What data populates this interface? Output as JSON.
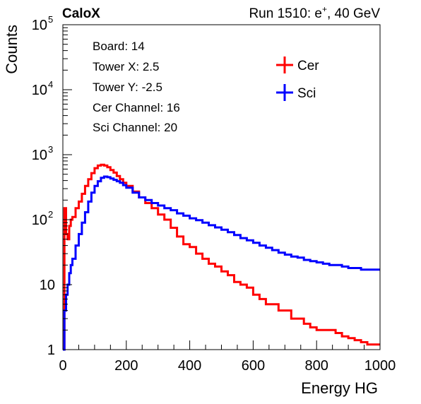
{
  "header": {
    "experiment": "CaloX",
    "run_label": "Run 1510: e",
    "run_sup": "+",
    "run_energy": ", 40 GeV"
  },
  "info": {
    "board": "Board: 14",
    "tower_x": "Tower X: 2.5",
    "tower_y": "Tower Y: -2.5",
    "cer_channel": "Cer Channel: 16",
    "sci_channel": "Sci Channel: 20"
  },
  "colors": {
    "cer": "#ff0000",
    "sci": "#0000ff",
    "axis": "#000000"
  },
  "chart_data": {
    "type": "line",
    "title": "",
    "xlabel": "Energy HG",
    "ylabel": "Counts",
    "xlim": [
      0,
      1000
    ],
    "ylim": [
      1,
      100000
    ],
    "yscale": "log",
    "grid": false,
    "legend_position": "top-right",
    "x_ticks": [
      0,
      200,
      400,
      600,
      800,
      1000
    ],
    "x_tick_labels": [
      "0",
      "200",
      "400",
      "600",
      "800",
      "1000"
    ],
    "y_ticks": [
      1,
      10,
      100,
      1000,
      10000,
      100000
    ],
    "y_tick_labels": [
      {
        "base": "1",
        "exp": ""
      },
      {
        "base": "10",
        "exp": ""
      },
      {
        "base": "10",
        "exp": "2"
      },
      {
        "base": "10",
        "exp": "3"
      },
      {
        "base": "10",
        "exp": "4"
      },
      {
        "base": "10",
        "exp": "5"
      }
    ],
    "series": [
      {
        "name": "Cer",
        "color": "#ff0000",
        "x": [
          0,
          5,
          10,
          15,
          20,
          25,
          30,
          40,
          50,
          60,
          70,
          80,
          90,
          100,
          110,
          120,
          130,
          140,
          150,
          160,
          170,
          180,
          190,
          200,
          220,
          240,
          260,
          280,
          300,
          320,
          340,
          360,
          380,
          400,
          420,
          440,
          460,
          480,
          500,
          520,
          540,
          560,
          580,
          600,
          620,
          640,
          660,
          680,
          700,
          720,
          740,
          760,
          780,
          800,
          820,
          840,
          860,
          880,
          900,
          920,
          940,
          960,
          980,
          1000
        ],
        "y": [
          1,
          150,
          60,
          50,
          80,
          100,
          110,
          150,
          190,
          250,
          330,
          420,
          520,
          620,
          680,
          700,
          680,
          640,
          580,
          530,
          470,
          420,
          370,
          330,
          270,
          220,
          180,
          150,
          120,
          100,
          75,
          55,
          42,
          38,
          30,
          25,
          21,
          19,
          16,
          14,
          11,
          10,
          9,
          7,
          6,
          5,
          5,
          4,
          4,
          3,
          3,
          2.5,
          2.2,
          2,
          2,
          2,
          1.8,
          1.6,
          1.5,
          1.4,
          1.3,
          1.2,
          1.2,
          1.2
        ]
      },
      {
        "name": "Sci",
        "color": "#0000ff",
        "x": [
          0,
          5,
          10,
          15,
          20,
          25,
          30,
          40,
          50,
          60,
          70,
          80,
          90,
          100,
          110,
          120,
          130,
          140,
          150,
          160,
          170,
          180,
          190,
          200,
          220,
          240,
          260,
          280,
          300,
          320,
          340,
          360,
          380,
          400,
          420,
          440,
          460,
          480,
          500,
          520,
          540,
          560,
          580,
          600,
          620,
          640,
          660,
          680,
          700,
          720,
          740,
          760,
          780,
          800,
          820,
          840,
          860,
          880,
          900,
          920,
          940,
          960,
          980,
          1000
        ],
        "y": [
          1,
          4,
          7,
          10,
          15,
          20,
          25,
          40,
          60,
          90,
          130,
          190,
          260,
          330,
          390,
          440,
          460,
          450,
          430,
          410,
          390,
          370,
          340,
          310,
          260,
          220,
          200,
          180,
          165,
          150,
          140,
          125,
          115,
          105,
          98,
          90,
          82,
          76,
          70,
          64,
          58,
          52,
          48,
          44,
          40,
          37,
          34,
          31,
          29,
          27,
          26,
          24,
          23,
          22,
          21,
          20,
          20,
          19,
          18,
          18,
          17,
          17,
          17,
          17
        ]
      }
    ]
  }
}
